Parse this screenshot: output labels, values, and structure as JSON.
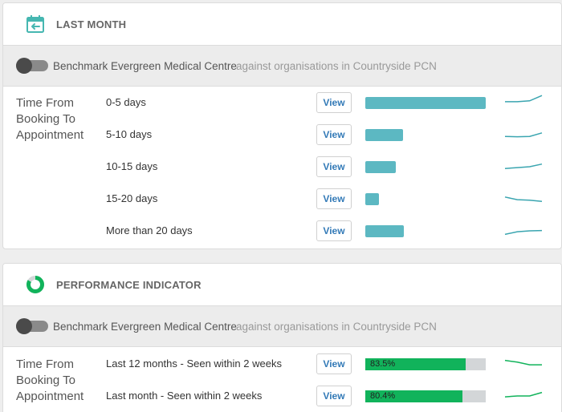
{
  "colors": {
    "accent": "#46b7b1",
    "bar_teal": "#5cb8c2",
    "bar_green": "#11b35b",
    "bar_track": "#d3d6d8",
    "sparkline": "#3aa5b0",
    "link": "#337ab7"
  },
  "last_month": {
    "title": "LAST MONTH",
    "icon": "calendar-back-icon",
    "benchmark": {
      "org": "Benchmark Evergreen Medical Centre",
      "comparison": "against organisations in Countryside PCN"
    },
    "metric": {
      "name": "Time From Booking To Appointment",
      "rows": [
        {
          "label": "0-5 days",
          "button": "View",
          "value": 100,
          "spark": [
            0.45,
            0.45,
            0.4,
            0.1
          ]
        },
        {
          "label": "5-10 days",
          "button": "View",
          "value": 31,
          "spark": [
            0.6,
            0.62,
            0.6,
            0.4
          ]
        },
        {
          "label": "10-15 days",
          "button": "View",
          "value": 25,
          "spark": [
            0.6,
            0.55,
            0.5,
            0.35
          ]
        },
        {
          "label": "15-20 days",
          "button": "View",
          "value": 11,
          "spark": [
            0.4,
            0.55,
            0.58,
            0.65
          ]
        },
        {
          "label": "More than 20 days",
          "button": "View",
          "value": 32,
          "spark": [
            0.7,
            0.55,
            0.5,
            0.48
          ]
        }
      ]
    }
  },
  "performance": {
    "title": "PERFORMANCE INDICATOR",
    "icon": "donut-chart-icon",
    "benchmark": {
      "org": "Benchmark Evergreen Medical Centre",
      "comparison": "against organisations in Countryside PCN"
    },
    "metric": {
      "name": "Time From Booking To Appointment",
      "rows": [
        {
          "label": "Last 12 months - Seen within 2 weeks",
          "button": "View",
          "value": 83.5,
          "display": "83.5%",
          "spark": [
            0.3,
            0.4,
            0.55,
            0.55
          ]
        },
        {
          "label": "Last month - Seen within 2 weeks",
          "button": "View",
          "value": 80.4,
          "display": "80.4%",
          "spark": [
            0.55,
            0.5,
            0.5,
            0.3
          ]
        }
      ]
    }
  }
}
